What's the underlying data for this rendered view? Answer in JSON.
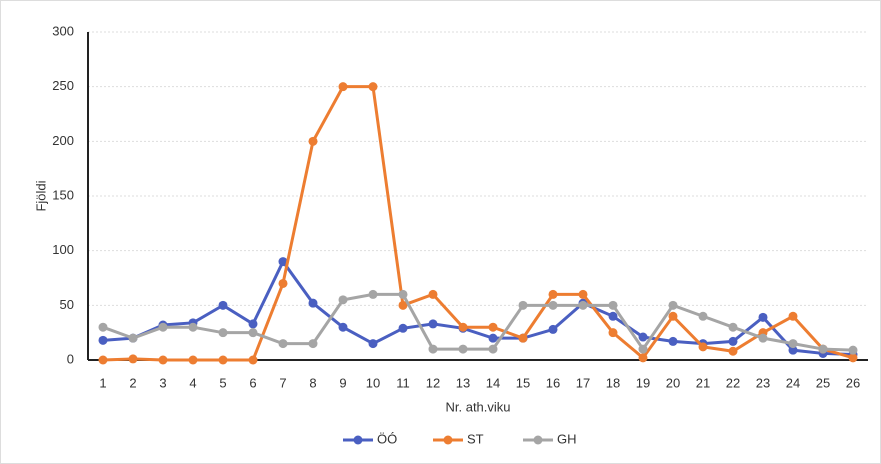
{
  "chart_data": {
    "type": "line",
    "y_label": "Fjöldi",
    "x_label": "Nr. ath.viku",
    "categories": [
      "1",
      "2",
      "3",
      "4",
      "5",
      "6",
      "7",
      "8",
      "9",
      "10",
      "11",
      "12",
      "13",
      "14",
      "15",
      "16",
      "17",
      "18",
      "19",
      "20",
      "21",
      "22",
      "23",
      "24",
      "25",
      "26"
    ],
    "series": [
      {
        "name": "ÖÓ",
        "color": "#4a5fc1",
        "values": [
          18,
          20,
          32,
          34,
          50,
          33,
          90,
          52,
          30,
          15,
          29,
          33,
          29,
          20,
          20,
          28,
          52,
          40,
          21,
          17,
          15,
          17,
          39,
          9,
          6,
          5
        ]
      },
      {
        "name": "ST",
        "color": "#ed7d31",
        "values": [
          0,
          1,
          0,
          0,
          0,
          0,
          70,
          200,
          250,
          250,
          50,
          60,
          30,
          30,
          20,
          60,
          60,
          25,
          2,
          40,
          12,
          8,
          25,
          40,
          10,
          2
        ]
      },
      {
        "name": "GH",
        "color": "#a5a5a5",
        "values": [
          30,
          20,
          30,
          30,
          25,
          25,
          15,
          15,
          55,
          60,
          60,
          10,
          10,
          10,
          50,
          50,
          50,
          50,
          10,
          50,
          40,
          30,
          20,
          15,
          10,
          9
        ]
      }
    ],
    "ylim": [
      0,
      300
    ],
    "yticks": [
      0,
      50,
      100,
      150,
      200,
      250,
      300
    ],
    "grid": true,
    "legend": "bottom"
  }
}
